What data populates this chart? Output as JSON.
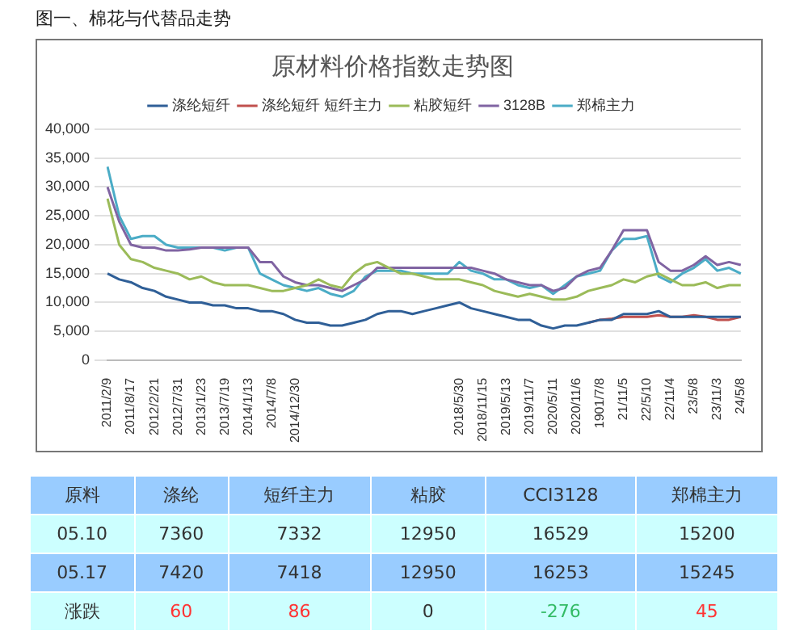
{
  "chart_data": {
    "type": "line",
    "title": "原材料价格指数走势图",
    "annotations": [
      "图一、棉花与代替品走势",
      "原料",
      "涤纶",
      "短纤主力",
      "粘胶",
      "CCI3128",
      "郑棉主力",
      "05.10",
      "7360",
      "7332",
      "12950",
      "16529",
      "15200",
      "05.17",
      "7420",
      "7418",
      "12950",
      "16253",
      "15245",
      "涨跌",
      "60",
      "86",
      "0",
      "-276",
      "45"
    ],
    "categories": [
      "2011/2/9",
      null,
      "2011/8/17",
      null,
      "2012/2/21",
      null,
      "2012/7/31",
      null,
      "2013/1/23",
      null,
      "2013/7/19",
      null,
      "2014/1/13",
      null,
      "2014/7/8",
      null,
      "2014/12/30",
      null,
      null,
      null,
      null,
      null,
      null,
      null,
      null,
      null,
      null,
      null,
      null,
      null,
      "2018/5/30",
      null,
      "2018/11/15",
      null,
      "2019/5/13",
      null,
      "2019/11/7",
      null,
      "2020/5/11",
      null,
      "2020/11/6",
      null,
      "1901/7/8",
      null,
      "21/11/5",
      null,
      "22/5/10",
      null,
      "22/11/4",
      null,
      "23/5/8",
      null,
      "23/11/3",
      null,
      "24/5/8"
    ],
    "series": [
      {
        "name": "涤纶短纤",
        "color": "#2f5f97",
        "values": [
          15000,
          14000,
          13500,
          12500,
          12000,
          11000,
          10500,
          10000,
          10000,
          9500,
          9500,
          9000,
          9000,
          8500,
          8500,
          8000,
          7000,
          6500,
          6500,
          6000,
          6000,
          6500,
          7000,
          8000,
          8500,
          8500,
          8000,
          8500,
          9000,
          9500,
          10000,
          9000,
          8500,
          8000,
          7500,
          7000,
          7000,
          6000,
          5500,
          6000,
          6000,
          6500,
          7000,
          7000,
          8000,
          8000,
          8000,
          8500,
          7500,
          7500,
          7500,
          7500,
          7500,
          7500,
          7500
        ]
      },
      {
        "name": "涤纶短纤 短纤主力",
        "color": "#c0504d",
        "values": [
          null,
          null,
          null,
          null,
          null,
          null,
          null,
          null,
          null,
          null,
          null,
          null,
          null,
          null,
          null,
          null,
          null,
          null,
          null,
          null,
          null,
          null,
          null,
          null,
          null,
          null,
          null,
          null,
          null,
          null,
          null,
          null,
          null,
          null,
          null,
          null,
          null,
          null,
          null,
          null,
          null,
          6500,
          7000,
          7200,
          7500,
          7500,
          7500,
          7800,
          7500,
          7500,
          7800,
          7500,
          7000,
          7000,
          7500
        ]
      },
      {
        "name": "粘胶短纤",
        "color": "#9bbb59",
        "values": [
          28000,
          20000,
          17500,
          17000,
          16000,
          15500,
          15000,
          14000,
          14500,
          13500,
          13000,
          13000,
          13000,
          12500,
          12000,
          12000,
          12500,
          13000,
          14000,
          13000,
          12500,
          15000,
          16500,
          17000,
          16000,
          15000,
          15000,
          14500,
          14000,
          14000,
          14000,
          13500,
          13000,
          12000,
          11500,
          11000,
          11500,
          11000,
          10500,
          10500,
          11000,
          12000,
          12500,
          13000,
          14000,
          13500,
          14500,
          15000,
          14000,
          13000,
          13000,
          13500,
          12500,
          13000,
          13000
        ]
      },
      {
        "name": "3128B",
        "color": "#8064a2",
        "values": [
          30000,
          24000,
          20000,
          19500,
          19500,
          19000,
          19000,
          19200,
          19500,
          19500,
          19500,
          19500,
          19500,
          17000,
          17000,
          14500,
          13500,
          13000,
          13000,
          12500,
          12000,
          13000,
          14000,
          16000,
          16000,
          16000,
          16000,
          16000,
          16000,
          16000,
          16000,
          16000,
          15500,
          15000,
          14000,
          13500,
          13000,
          13000,
          12000,
          12500,
          14500,
          15500,
          16000,
          19000,
          22500,
          22500,
          22500,
          17000,
          15500,
          15500,
          16500,
          18000,
          16500,
          17000,
          16500
        ]
      },
      {
        "name": "郑棉主力",
        "color": "#4bacc6",
        "values": [
          33500,
          25000,
          21000,
          21500,
          21500,
          20000,
          19500,
          19500,
          19500,
          19500,
          19000,
          19500,
          19500,
          15000,
          14000,
          13000,
          12500,
          12000,
          12500,
          11500,
          11000,
          12000,
          14500,
          15500,
          15500,
          15500,
          15000,
          15000,
          15000,
          15000,
          17000,
          15500,
          15000,
          14000,
          14000,
          13000,
          12500,
          13000,
          11500,
          13000,
          14500,
          15000,
          15500,
          19000,
          21000,
          21000,
          21500,
          14500,
          13500,
          15000,
          16000,
          17500,
          15500,
          16000,
          15000
        ]
      }
    ],
    "ylim": [
      0,
      40000
    ],
    "yticks": [
      0,
      {
        "value": 5000,
        "label": "5,000"
      },
      {
        "value": 10000,
        "label": "10,000"
      },
      {
        "value": 15000,
        "label": "15,000"
      },
      {
        "value": 20000,
        "label": "20,000"
      },
      {
        "value": 25000,
        "label": "25,000"
      },
      {
        "value": 30000,
        "label": "30,000"
      },
      {
        "value": 35000,
        "label": "35,000"
      },
      {
        "value": 40000,
        "label": "40,000"
      }
    ],
    "grid": "y",
    "legend": "top",
    "marker": "none",
    "line_style": "solid"
  }
}
